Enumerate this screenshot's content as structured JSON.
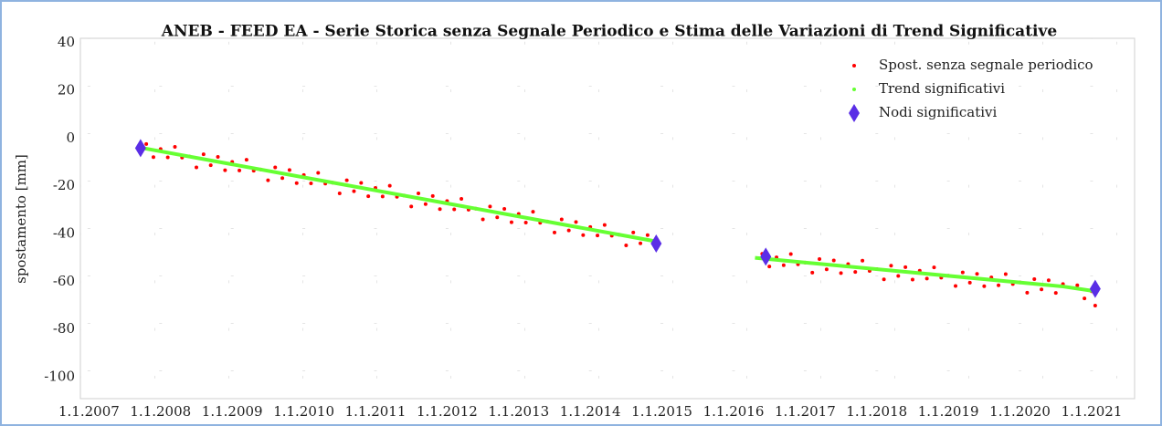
{
  "chart_data": {
    "type": "scatter",
    "title": "ANEB - FEED EA - Serie Storica senza Segnale Periodico e Stima delle Variazioni di Trend Significative",
    "ylabel": "spostamento [mm]",
    "xlim": [
      2006.88,
      2021.6
    ],
    "ylim": [
      -109,
      42
    ],
    "xticks": [
      {
        "value": 2007,
        "label": "1.1.2007"
      },
      {
        "value": 2008,
        "label": "1.1.2008"
      },
      {
        "value": 2009,
        "label": "1.1.2009"
      },
      {
        "value": 2010,
        "label": "1.1.2010"
      },
      {
        "value": 2011,
        "label": "1.1.2011"
      },
      {
        "value": 2012,
        "label": "1.1.2012"
      },
      {
        "value": 2013,
        "label": "1.1.2013"
      },
      {
        "value": 2014,
        "label": "1.1.2014"
      },
      {
        "value": 2015,
        "label": "1.1.2015"
      },
      {
        "value": 2016,
        "label": "1.1.2016"
      },
      {
        "value": 2017,
        "label": "1.1.2017"
      },
      {
        "value": 2018,
        "label": "1.1.2018"
      },
      {
        "value": 2019,
        "label": "1.1.2019"
      },
      {
        "value": 2020,
        "label": "1.1.2020"
      },
      {
        "value": 2021,
        "label": "1.1.2021"
      }
    ],
    "yticks": [
      40,
      20,
      0,
      -20,
      -40,
      -60,
      -80,
      -100
    ],
    "grid": true,
    "legend": "upper right",
    "series": [
      {
        "name": "Spost. senza segnale periodico",
        "type": "scatter",
        "color": "#ff0000",
        "x": [
          2007.8,
          2007.9,
          2008.0,
          2008.1,
          2008.2,
          2008.3,
          2008.4,
          2008.5,
          2008.6,
          2008.7,
          2008.8,
          2008.9,
          2009.0,
          2009.1,
          2009.2,
          2009.3,
          2009.4,
          2009.5,
          2009.6,
          2009.7,
          2009.8,
          2009.9,
          2010.0,
          2010.1,
          2010.2,
          2010.3,
          2010.4,
          2010.5,
          2010.6,
          2010.7,
          2010.8,
          2010.9,
          2011.0,
          2011.1,
          2011.2,
          2011.3,
          2011.4,
          2011.5,
          2011.6,
          2011.7,
          2011.8,
          2011.9,
          2012.0,
          2012.1,
          2012.2,
          2012.3,
          2012.4,
          2012.5,
          2012.6,
          2012.7,
          2012.8,
          2012.9,
          2013.0,
          2013.1,
          2013.2,
          2013.3,
          2013.4,
          2013.5,
          2013.6,
          2013.7,
          2013.8,
          2013.9,
          2014.0,
          2014.1,
          2014.2,
          2014.3,
          2014.4,
          2014.5,
          2014.6,
          2014.7,
          2014.8,
          2014.9,
          2016.4,
          2016.5,
          2016.6,
          2016.7,
          2016.8,
          2016.9,
          2017.0,
          2017.1,
          2017.2,
          2017.3,
          2017.4,
          2017.5,
          2017.6,
          2017.7,
          2017.8,
          2017.9,
          2018.0,
          2018.1,
          2018.2,
          2018.3,
          2018.4,
          2018.5,
          2018.6,
          2018.7,
          2018.8,
          2018.9,
          2019.0,
          2019.1,
          2019.2,
          2019.3,
          2019.4,
          2019.5,
          2019.6,
          2019.7,
          2019.8,
          2019.9,
          2020.0,
          2020.1,
          2020.2,
          2020.3,
          2020.4,
          2020.5,
          2020.6,
          2020.8,
          2020.9,
          2021.0,
          2021.05
        ],
        "values": [
          -2.3,
          -7.8,
          -4.4,
          -7.9,
          -3.5,
          -8.0,
          -7.5,
          -12.1,
          -6.6,
          -11.2,
          -7.7,
          -13.3,
          -9.8,
          -13.4,
          -8.9,
          -13.5,
          -13.0,
          -17.5,
          -12.1,
          -16.6,
          -13.2,
          -18.7,
          -15.3,
          -18.8,
          -14.4,
          -18.9,
          -18.5,
          -23.0,
          -17.5,
          -22.1,
          -18.6,
          -24.2,
          -20.7,
          -24.3,
          -19.8,
          -24.4,
          -23.9,
          -28.5,
          -23.0,
          -27.5,
          -24.1,
          -29.6,
          -26.2,
          -29.7,
          -25.3,
          -29.8,
          -29.4,
          -33.9,
          -28.5,
          -33.0,
          -29.5,
          -35.1,
          -31.6,
          -35.2,
          -30.7,
          -35.3,
          -34.8,
          -39.4,
          -33.9,
          -38.5,
          -35.0,
          -40.5,
          -37.1,
          -40.6,
          -36.2,
          -40.7,
          -40.3,
          -44.8,
          -39.4,
          -43.9,
          -40.5,
          -45.0,
          -48.3,
          -53.6,
          -49.8,
          -53.1,
          -48.4,
          -52.7,
          -52.0,
          -56.2,
          -50.5,
          -54.8,
          -51.1,
          -56.4,
          -52.6,
          -55.9,
          -51.2,
          -55.5,
          -54.7,
          -59.0,
          -53.3,
          -57.6,
          -53.9,
          -59.1,
          -55.4,
          -58.7,
          -54.0,
          -58.3,
          -57.5,
          -61.8,
          -56.1,
          -60.4,
          -56.7,
          -61.9,
          -58.2,
          -61.5,
          -56.8,
          -61.0,
          -60.3,
          -64.6,
          -58.9,
          -63.2,
          -59.4,
          -64.7,
          -61.0,
          -61.5,
          -67,
          -64,
          -70
        ]
      },
      {
        "name": "Trend significativi",
        "type": "line",
        "color": "#66ff33",
        "x": [
          2007.75,
          2014.9,
          2015.6,
          2016.3,
          2020.6,
          2021.05
        ],
        "values": [
          -4,
          -43,
          null,
          -50,
          -62,
          -64
        ]
      },
      {
        "name": "Nodi significativi",
        "type": "marker",
        "color": "#5a2ee6",
        "x": [
          2007.72,
          2014.92,
          2016.45,
          2021.05
        ],
        "values": [
          -4,
          -44,
          -49.5,
          -63
        ]
      }
    ]
  }
}
